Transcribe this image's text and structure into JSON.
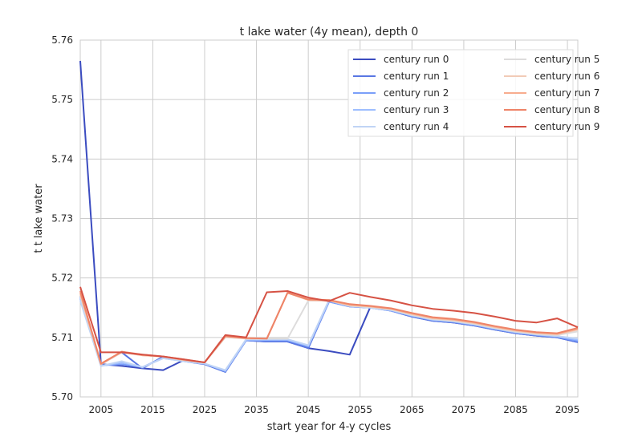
{
  "chart_data": {
    "type": "line",
    "title": "t lake water (4y mean), depth 0",
    "xlabel": "start year for 4-y cycles",
    "ylabel": "t t lake water",
    "xlim": [
      2001,
      2097
    ],
    "ylim": [
      5.7,
      5.76
    ],
    "xticks": [
      2005,
      2015,
      2025,
      2035,
      2045,
      2055,
      2065,
      2075,
      2085,
      2095
    ],
    "yticks": [
      5.7,
      5.71,
      5.72,
      5.73,
      5.74,
      5.75,
      5.76
    ],
    "grid": true,
    "legend_position": "top-right",
    "x": [
      2001,
      2005,
      2009,
      2013,
      2017,
      2021,
      2025,
      2029,
      2033,
      2037,
      2041,
      2045,
      2049,
      2053,
      2057,
      2061,
      2065,
      2069,
      2073,
      2077,
      2081,
      2085,
      2089,
      2093,
      2097
    ],
    "series": [
      {
        "name": "century run 0",
        "color": "#3b4cc0",
        "values": [
          5.7565,
          5.7055,
          5.7052,
          5.7048,
          5.7045,
          5.7062,
          5.7055,
          5.7042,
          5.7095,
          5.7093,
          5.7093,
          5.7082,
          5.7077,
          5.7071,
          5.7152,
          5.7145,
          5.7135,
          5.7128,
          5.7125,
          5.712,
          5.7113,
          5.7107,
          5.7103,
          5.71,
          5.7092
        ]
      },
      {
        "name": "century run 1",
        "color": "#5977e3",
        "values": [
          5.717,
          5.7055,
          5.7075,
          5.7048,
          5.7068,
          5.706,
          5.7055,
          5.7042,
          5.7095,
          5.7093,
          5.7093,
          5.7082,
          5.716,
          5.7152,
          5.715,
          5.7145,
          5.7135,
          5.7128,
          5.7125,
          5.712,
          5.7113,
          5.7107,
          5.7103,
          5.71,
          5.7092
        ]
      },
      {
        "name": "century run 2",
        "color": "#7b9ff9",
        "values": [
          5.7168,
          5.7053,
          5.7055,
          5.705,
          5.7066,
          5.706,
          5.7056,
          5.7043,
          5.7095,
          5.7095,
          5.7095,
          5.7085,
          5.716,
          5.7152,
          5.715,
          5.7145,
          5.7136,
          5.7129,
          5.7126,
          5.7121,
          5.7114,
          5.7108,
          5.7104,
          5.7101,
          5.7094
        ]
      },
      {
        "name": "century run 3",
        "color": "#9ebeff",
        "values": [
          5.7165,
          5.7052,
          5.7058,
          5.705,
          5.7065,
          5.706,
          5.7056,
          5.7044,
          5.7096,
          5.7096,
          5.7096,
          5.7086,
          5.7162,
          5.7153,
          5.715,
          5.7146,
          5.7137,
          5.713,
          5.7127,
          5.7122,
          5.7115,
          5.7109,
          5.7105,
          5.7102,
          5.7096
        ]
      },
      {
        "name": "century run 4",
        "color": "#c0d4f5",
        "values": [
          5.7162,
          5.7052,
          5.706,
          5.705,
          5.7065,
          5.706,
          5.7056,
          5.7045,
          5.7097,
          5.7097,
          5.7097,
          5.7087,
          5.7163,
          5.7153,
          5.715,
          5.7146,
          5.7137,
          5.713,
          5.7127,
          5.7122,
          5.7115,
          5.7109,
          5.7105,
          5.7102,
          5.7098
        ]
      },
      {
        "name": "century run 5",
        "color": "#dddcdc",
        "values": [
          5.717,
          5.7055,
          5.7075,
          5.707,
          5.7068,
          5.7062,
          5.7058,
          5.71,
          5.7098,
          5.7098,
          5.7098,
          5.7162,
          5.7162,
          5.7153,
          5.7151,
          5.7147,
          5.7138,
          5.7131,
          5.7128,
          5.7123,
          5.7116,
          5.711,
          5.7106,
          5.7104,
          5.711
        ]
      },
      {
        "name": "century run 6",
        "color": "#f2cbb7",
        "values": [
          5.7172,
          5.7055,
          5.7075,
          5.707,
          5.7068,
          5.7062,
          5.7058,
          5.7101,
          5.7098,
          5.7098,
          5.7175,
          5.7163,
          5.7162,
          5.7154,
          5.7152,
          5.7148,
          5.7139,
          5.7132,
          5.7129,
          5.7124,
          5.7117,
          5.7111,
          5.7107,
          5.7105,
          5.7113
        ]
      },
      {
        "name": "century run 7",
        "color": "#f7ac8e",
        "values": [
          5.7175,
          5.7055,
          5.7076,
          5.707,
          5.7068,
          5.7062,
          5.7058,
          5.7102,
          5.7099,
          5.7098,
          5.7175,
          5.7163,
          5.7162,
          5.7155,
          5.7152,
          5.7148,
          5.714,
          5.7133,
          5.713,
          5.7125,
          5.7118,
          5.7112,
          5.7108,
          5.7106,
          5.7114
        ]
      },
      {
        "name": "century run 8",
        "color": "#ee8468",
        "values": [
          5.7178,
          5.7056,
          5.7076,
          5.7071,
          5.7068,
          5.7063,
          5.7058,
          5.7102,
          5.7099,
          5.7098,
          5.7175,
          5.7164,
          5.7163,
          5.7156,
          5.7153,
          5.7149,
          5.7141,
          5.7134,
          5.7131,
          5.7126,
          5.7119,
          5.7113,
          5.7109,
          5.7107,
          5.7116
        ]
      },
      {
        "name": "century run 9",
        "color": "#d65244",
        "values": [
          5.7185,
          5.7075,
          5.7075,
          5.7071,
          5.7068,
          5.7063,
          5.7058,
          5.7104,
          5.71,
          5.7176,
          5.7178,
          5.7167,
          5.7161,
          5.7175,
          5.7168,
          5.7162,
          5.7154,
          5.7148,
          5.7145,
          5.7141,
          5.7135,
          5.7128,
          5.7125,
          5.7132,
          5.7117
        ]
      }
    ]
  }
}
